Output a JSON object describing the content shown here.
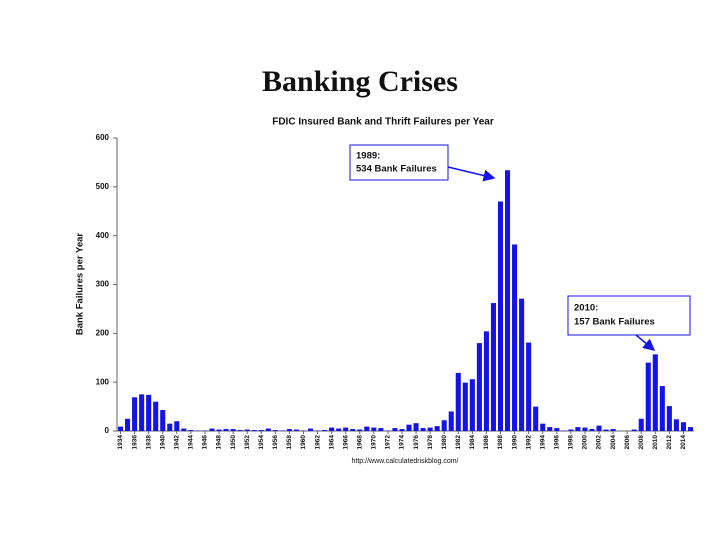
{
  "title": "Banking Crises",
  "chart_data": {
    "type": "bar",
    "title": "FDIC Insured Bank and Thrift Failures per Year",
    "y_label": "Bank Failures per Year",
    "source": "http://www.calculatedriskblog.com/",
    "color": "#1414e6",
    "categories": [
      "1934",
      null,
      "1936",
      null,
      "1938",
      null,
      "1940",
      null,
      "1942",
      null,
      "1944",
      null,
      "1946",
      null,
      "1948",
      null,
      "1950",
      null,
      "1952",
      null,
      "1954",
      null,
      "1956",
      null,
      "1958",
      null,
      "1960",
      null,
      "1962",
      null,
      "1964",
      null,
      "1966",
      null,
      "1968",
      null,
      "1970",
      null,
      "1972",
      null,
      "1974",
      null,
      "1976",
      null,
      "1978",
      null,
      "1980",
      null,
      "1982",
      null,
      "1984",
      null,
      "1986",
      null,
      "1988",
      null,
      "1990",
      null,
      "1992",
      null,
      "1994",
      null,
      "1996",
      null,
      "1998",
      null,
      "2000",
      null,
      "2002",
      null,
      "2004",
      null,
      "2006",
      null,
      "2008",
      null,
      "2010",
      null,
      "2012",
      null,
      "2014",
      null
    ],
    "values": [
      9,
      25,
      69,
      75,
      74,
      60,
      43,
      15,
      20,
      5,
      2,
      1,
      1,
      5,
      3,
      4,
      4,
      2,
      3,
      2,
      2,
      5,
      2,
      1,
      4,
      3,
      1,
      5,
      1,
      2,
      7,
      5,
      7,
      4,
      3,
      9,
      7,
      6,
      1,
      6,
      4,
      13,
      16,
      6,
      7,
      10,
      22,
      40,
      119,
      99,
      106,
      180,
      204,
      262,
      470,
      534,
      382,
      271,
      181,
      50,
      15,
      8,
      6,
      1,
      3,
      8,
      7,
      4,
      11,
      3,
      4,
      0,
      0,
      3,
      25,
      140,
      157,
      92,
      51,
      24,
      18,
      8
    ],
    "ylim": [
      0,
      600
    ],
    "yticks": [
      0,
      100,
      200,
      300,
      400,
      500,
      600
    ],
    "annotations": [
      {
        "lines": [
          "1989:",
          "534 Bank Failures"
        ]
      },
      {
        "lines": [
          "2010:",
          "157 Bank Failures"
        ]
      }
    ]
  }
}
